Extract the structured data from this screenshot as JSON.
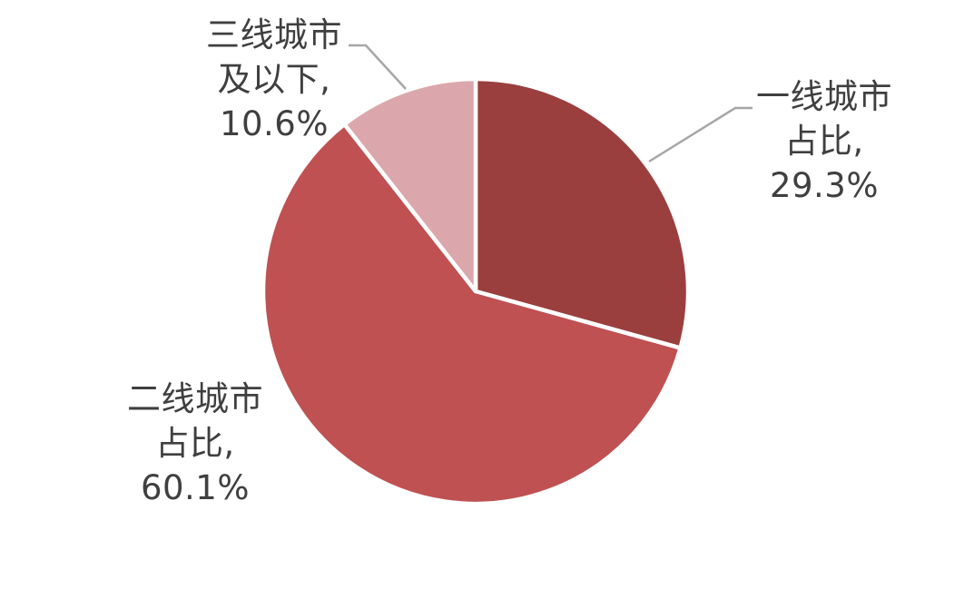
{
  "figure": {
    "background": "#FFFFFF"
  },
  "chart_data": {
    "type": "pie",
    "title": "",
    "categories": [
      "一线城市占比",
      "二线城市占比",
      "三线城市及以下"
    ],
    "values": [
      29.3,
      60.1,
      10.6
    ],
    "unit": "%",
    "series_colors": [
      "#9A3F3E",
      "#BF5152",
      "#DBA7AC"
    ],
    "start_angle_deg": 0,
    "direction": "clockwise",
    "legend": "none",
    "grid": "off",
    "slice_border_color": "#FFFFFF",
    "leader_line_color": "#A6A6A6",
    "label_text_color": "#3F3F3F",
    "labels": [
      {
        "lines": [
          "一线城市",
          "占比,",
          "29.3%"
        ]
      },
      {
        "lines": [
          "二线城市",
          "占比,",
          "60.1%"
        ]
      },
      {
        "lines": [
          "三线城市",
          "及以下,",
          "10.6%"
        ]
      }
    ]
  }
}
